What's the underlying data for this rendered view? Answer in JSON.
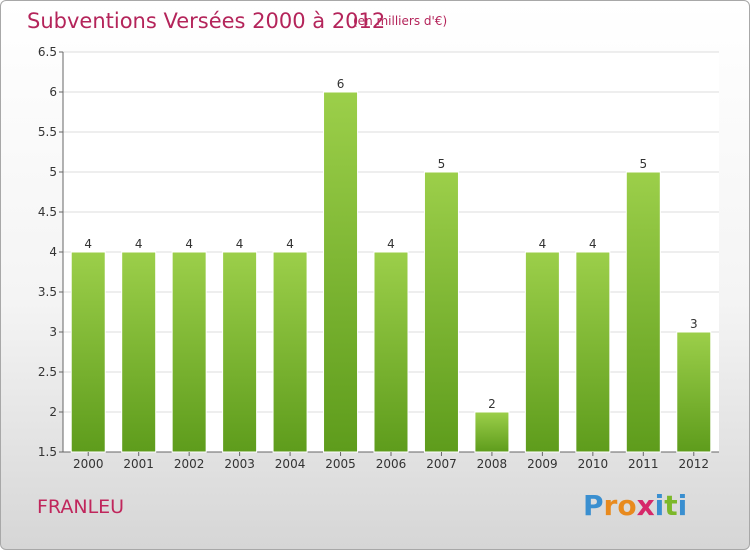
{
  "chart_data": {
    "type": "bar",
    "title": "Subventions Versées 2000 à 2012",
    "subtitle": "(en milliers d'€)",
    "categories": [
      "2000",
      "2001",
      "2002",
      "2003",
      "2004",
      "2005",
      "2006",
      "2007",
      "2008",
      "2009",
      "2010",
      "2011",
      "2012"
    ],
    "values": [
      4,
      4,
      4,
      4,
      4,
      6,
      4,
      5,
      2,
      4,
      4,
      5,
      3
    ],
    "ylim": [
      1.5,
      6.5
    ],
    "yticks": [
      1.5,
      2,
      2.5,
      3,
      3.5,
      4,
      4.5,
      5,
      5.5,
      6,
      6.5
    ],
    "ytick_labels": [
      "1.5",
      "2",
      "2.5",
      "3",
      "3.5",
      "4",
      "4.5",
      "5",
      "5.5",
      "6",
      "6.5"
    ],
    "grid": true,
    "bar_color_top": "#9ccf4a",
    "bar_color_bottom": "#5e9c1c"
  },
  "location": "FRANLEU",
  "brand": {
    "letters": [
      "P",
      "r",
      "o",
      "x",
      "i",
      "t",
      "i"
    ],
    "colors": [
      "#3a8fd0",
      "#e88a1e",
      "#e88a1e",
      "#d6286a",
      "#3a8fd0",
      "#7cb82a",
      "#3a8fd0"
    ]
  }
}
